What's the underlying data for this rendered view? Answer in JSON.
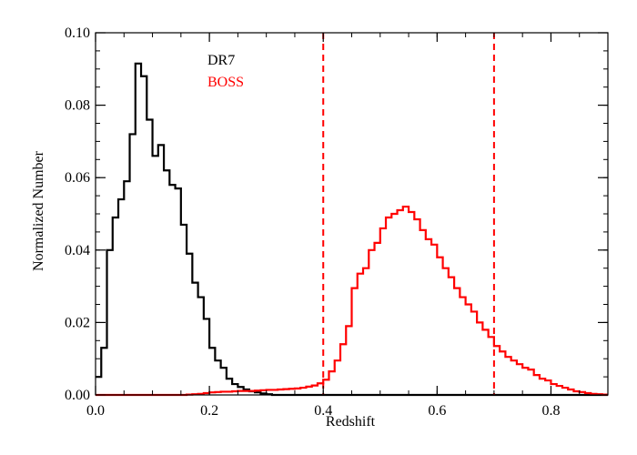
{
  "chart_data": {
    "type": "line",
    "title": "",
    "xlabel": "Redshift",
    "ylabel": "Normalized Number",
    "xlim": [
      0.0,
      0.9
    ],
    "ylim": [
      0.0,
      0.1
    ],
    "grid": false,
    "legend_placement": "top-left",
    "x_ticks": [
      0.0,
      0.2,
      0.4,
      0.6,
      0.8
    ],
    "x_tick_labels": [
      "0.0",
      "0.2",
      "0.4",
      "0.6",
      "0.8"
    ],
    "y_ticks": [
      0.0,
      0.02,
      0.04,
      0.06,
      0.08,
      0.1
    ],
    "y_tick_labels": [
      "0.00",
      "0.02",
      "0.04",
      "0.06",
      "0.08",
      "0.10"
    ],
    "x_minor_step": 0.05,
    "y_minor_step": 0.005,
    "style": "histogram-step",
    "bin_width": 0.01,
    "series": [
      {
        "name": "DR7",
        "color": "#000000",
        "bin_starts": [
          0.0,
          0.01,
          0.02,
          0.03,
          0.04,
          0.05,
          0.06,
          0.07,
          0.08,
          0.09,
          0.1,
          0.11,
          0.12,
          0.13,
          0.14,
          0.15,
          0.16,
          0.17,
          0.18,
          0.19,
          0.2,
          0.21,
          0.22,
          0.23,
          0.24,
          0.25,
          0.26,
          0.27,
          0.28,
          0.29,
          0.3
        ],
        "values": [
          0.005,
          0.013,
          0.04,
          0.049,
          0.054,
          0.059,
          0.072,
          0.0915,
          0.088,
          0.076,
          0.066,
          0.069,
          0.062,
          0.058,
          0.057,
          0.047,
          0.039,
          0.031,
          0.027,
          0.021,
          0.013,
          0.0095,
          0.0075,
          0.0045,
          0.003,
          0.0022,
          0.0015,
          0.001,
          0.0007,
          0.0004,
          0.0002
        ]
      },
      {
        "name": "BOSS",
        "color": "#ff0000",
        "bin_starts": [
          0.0,
          0.01,
          0.02,
          0.03,
          0.04,
          0.05,
          0.06,
          0.07,
          0.08,
          0.09,
          0.1,
          0.11,
          0.12,
          0.13,
          0.14,
          0.15,
          0.16,
          0.17,
          0.18,
          0.19,
          0.2,
          0.21,
          0.22,
          0.23,
          0.24,
          0.25,
          0.26,
          0.27,
          0.28,
          0.29,
          0.3,
          0.31,
          0.32,
          0.33,
          0.34,
          0.35,
          0.36,
          0.37,
          0.38,
          0.39,
          0.4,
          0.41,
          0.42,
          0.43,
          0.44,
          0.45,
          0.46,
          0.47,
          0.48,
          0.49,
          0.5,
          0.51,
          0.52,
          0.53,
          0.54,
          0.55,
          0.56,
          0.57,
          0.58,
          0.59,
          0.6,
          0.61,
          0.62,
          0.63,
          0.64,
          0.65,
          0.66,
          0.67,
          0.68,
          0.69,
          0.7,
          0.71,
          0.72,
          0.73,
          0.74,
          0.75,
          0.76,
          0.77,
          0.78,
          0.79,
          0.8,
          0.81,
          0.82,
          0.83,
          0.84,
          0.85,
          0.86,
          0.87,
          0.88,
          0.89
        ],
        "values": [
          0.0,
          0.0,
          0.0,
          0.0,
          0.0,
          0.0,
          0.0,
          0.0,
          0.0,
          0.0,
          0.0,
          0.0,
          0.0,
          0.0,
          0.0,
          0.0,
          0.0001,
          0.0002,
          0.0003,
          0.0005,
          0.0007,
          0.0008,
          0.0009,
          0.0009,
          0.001,
          0.0011,
          0.0011,
          0.0011,
          0.0012,
          0.0013,
          0.0014,
          0.0014,
          0.0015,
          0.0016,
          0.0017,
          0.0018,
          0.002,
          0.0023,
          0.0026,
          0.0032,
          0.0042,
          0.0065,
          0.0095,
          0.014,
          0.019,
          0.0295,
          0.0335,
          0.035,
          0.04,
          0.042,
          0.046,
          0.049,
          0.05,
          0.051,
          0.052,
          0.0505,
          0.0485,
          0.0455,
          0.043,
          0.0415,
          0.038,
          0.035,
          0.0325,
          0.0295,
          0.027,
          0.025,
          0.023,
          0.02,
          0.018,
          0.016,
          0.0135,
          0.012,
          0.0105,
          0.0095,
          0.0085,
          0.0075,
          0.007,
          0.0055,
          0.0045,
          0.004,
          0.003,
          0.0025,
          0.002,
          0.0015,
          0.001,
          0.0008,
          0.0005,
          0.0003,
          0.0002,
          0.0001
        ]
      }
    ],
    "vertical_lines": [
      {
        "x": 0.4,
        "color": "#ff0000",
        "style": "dashed"
      },
      {
        "x": 0.7,
        "color": "#ff0000",
        "style": "dashed"
      }
    ]
  }
}
